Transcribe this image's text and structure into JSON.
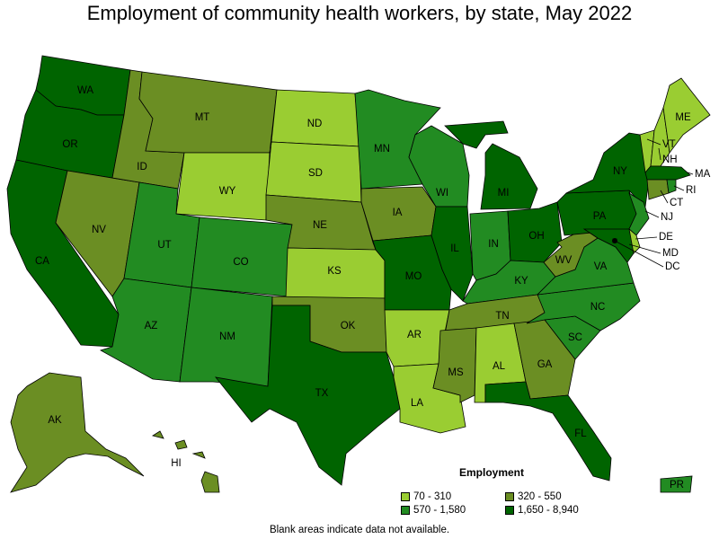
{
  "title": "Employment of community health workers, by state, May 2022",
  "legend": {
    "title": "Employment",
    "items": [
      {
        "label": "70 - 310",
        "color": "#9acd32"
      },
      {
        "label": "320 - 550",
        "color": "#6b8e23"
      },
      {
        "label": "570 - 1,580",
        "color": "#228b22"
      },
      {
        "label": "1,650 - 8,940",
        "color": "#006400"
      }
    ]
  },
  "note": "Blank areas indicate data not available.",
  "states": {
    "WA": 3,
    "OR": 3,
    "CA": 3,
    "NV": 1,
    "ID": 1,
    "MT": 1,
    "WY": 0,
    "UT": 2,
    "AZ": 2,
    "CO": 2,
    "NM": 2,
    "ND": 0,
    "SD": 0,
    "NE": 1,
    "KS": 0,
    "OK": 1,
    "TX": 3,
    "MN": 2,
    "IA": 1,
    "MO": 3,
    "AR": 0,
    "LA": 0,
    "WI": 2,
    "IL": 3,
    "MI": 3,
    "IN": 2,
    "OH": 3,
    "KY": 2,
    "TN": 1,
    "MS": 1,
    "AL": 0,
    "GA": 1,
    "FL": 3,
    "SC": 2,
    "NC": 2,
    "VA": 2,
    "WV": 1,
    "PA": 3,
    "NY": 3,
    "ME": 0,
    "NH": 0,
    "VT": 0,
    "MA": 3,
    "RI": 2,
    "CT": 1,
    "NJ": 2,
    "DE": 0,
    "MD": 3,
    "DC": 3,
    "AK": 1,
    "HI": 1,
    "PR": 2
  }
}
